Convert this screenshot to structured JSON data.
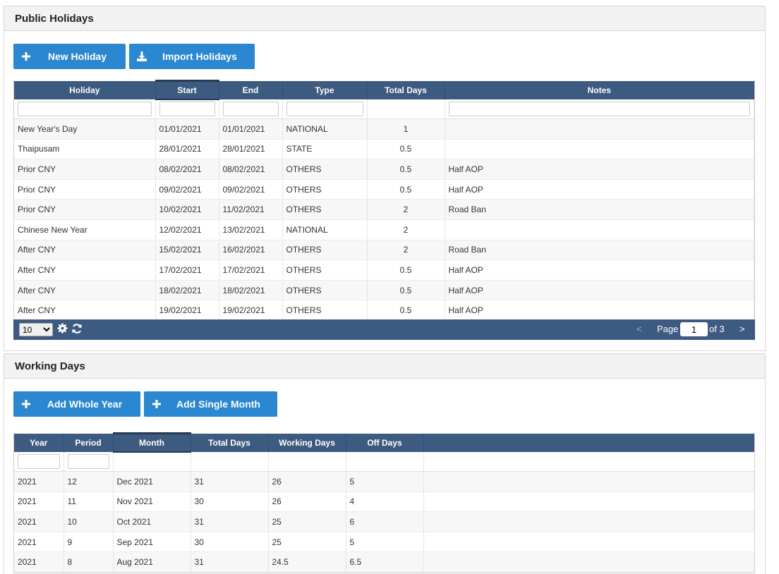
{
  "holidays_section": {
    "title": "Public Holidays",
    "buttons": {
      "new": "New Holiday",
      "import": "Import Holidays"
    },
    "columns": [
      "Holiday",
      "Start",
      "End",
      "Type",
      "Total Days",
      "Notes"
    ],
    "rows": [
      [
        "New Year's Day",
        "01/01/2021",
        "01/01/2021",
        "NATIONAL",
        "1",
        ""
      ],
      [
        "Thaipusam",
        "28/01/2021",
        "28/01/2021",
        "STATE",
        "0.5",
        ""
      ],
      [
        "Prior CNY",
        "08/02/2021",
        "08/02/2021",
        "OTHERS",
        "0.5",
        "Half AOP"
      ],
      [
        "Prior CNY",
        "09/02/2021",
        "09/02/2021",
        "OTHERS",
        "0.5",
        "Half AOP"
      ],
      [
        "Prior CNY",
        "10/02/2021",
        "11/02/2021",
        "OTHERS",
        "2",
        "Road Ban"
      ],
      [
        "Chinese New Year",
        "12/02/2021",
        "13/02/2021",
        "NATIONAL",
        "2",
        ""
      ],
      [
        "After CNY",
        "15/02/2021",
        "16/02/2021",
        "OTHERS",
        "2",
        "Road Ban"
      ],
      [
        "After CNY",
        "17/02/2021",
        "17/02/2021",
        "OTHERS",
        "0.5",
        "Half AOP"
      ],
      [
        "After CNY",
        "18/02/2021",
        "18/02/2021",
        "OTHERS",
        "0.5",
        "Half AOP"
      ],
      [
        "After CNY",
        "19/02/2021",
        "19/02/2021",
        "OTHERS",
        "0.5",
        "Half AOP"
      ]
    ],
    "pager": {
      "page_size": "10",
      "prev": "<",
      "page_label": "Page",
      "page": "1",
      "of_label": "of 3",
      "next": ">"
    }
  },
  "working_section": {
    "title": "Working Days",
    "buttons": {
      "whole_year": "Add Whole Year",
      "single_month": "Add Single Month"
    },
    "columns": [
      "Year",
      "Period",
      "Month",
      "Total Days",
      "Working Days",
      "Off Days"
    ],
    "rows": [
      [
        "2021",
        "12",
        "Dec 2021",
        "31",
        "26",
        "5"
      ],
      [
        "2021",
        "11",
        "Nov 2021",
        "30",
        "26",
        "4"
      ],
      [
        "2021",
        "10",
        "Oct 2021",
        "31",
        "25",
        "6"
      ],
      [
        "2021",
        "9",
        "Sep 2021",
        "30",
        "25",
        "5"
      ],
      [
        "2021",
        "8",
        "Aug 2021",
        "31",
        "24.5",
        "6.5"
      ]
    ]
  },
  "icons": {
    "plus": "plus-icon",
    "import": "download-icon",
    "gear": "gear-icon",
    "refresh": "refresh-icon"
  },
  "colors": {
    "header": "#3d5a80",
    "button": "#2a87d0"
  }
}
